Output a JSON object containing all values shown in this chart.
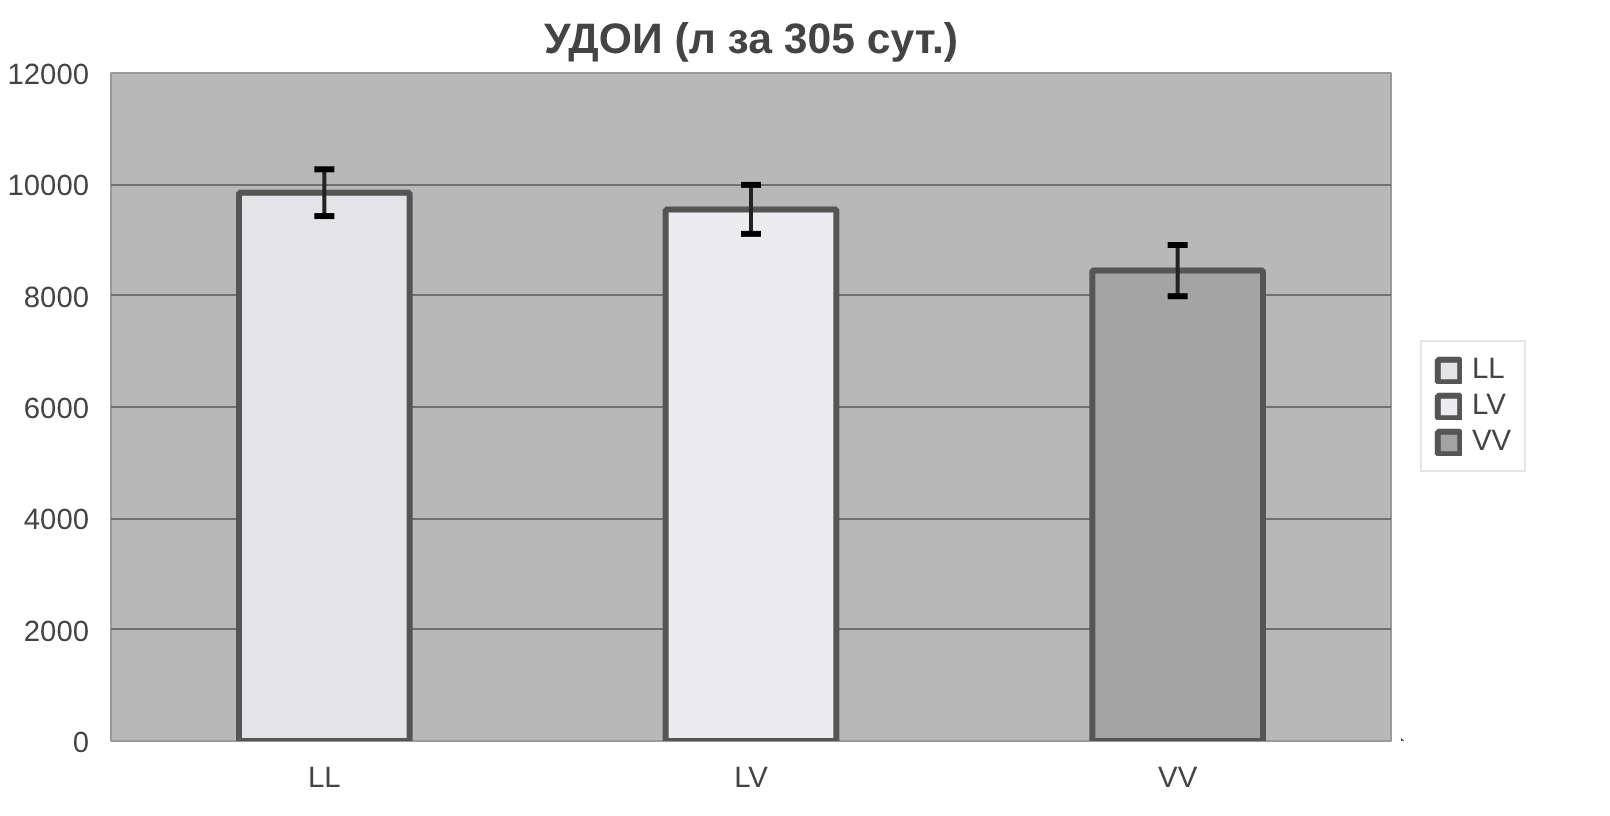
{
  "chart_data": {
    "type": "bar",
    "title": "УДОИ (л за 305 сут.)",
    "categories": [
      "LL",
      "LV",
      "VV"
    ],
    "series": [
      {
        "name": "LL",
        "color": "#e4e4e8",
        "values": [
          9850,
          null,
          null
        ],
        "errors": [
          420,
          null,
          null
        ]
      },
      {
        "name": "LV",
        "color": "#ececf0",
        "values": [
          null,
          9550,
          null
        ],
        "errors": [
          null,
          440,
          null
        ]
      },
      {
        "name": "VV",
        "color": "#a4a4a4",
        "values": [
          null,
          null,
          8450
        ],
        "errors": [
          null,
          null,
          460
        ]
      }
    ],
    "ylim": [
      0,
      12000
    ],
    "yticks": [
      0,
      2000,
      4000,
      6000,
      8000,
      10000,
      12000
    ],
    "grid": "y",
    "legend": "right"
  }
}
